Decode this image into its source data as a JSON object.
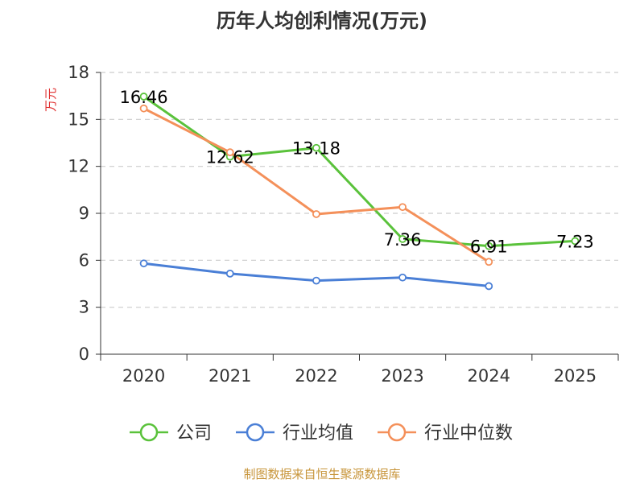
{
  "chart_data": {
    "type": "line",
    "title": "历年人均创利情况(万元)",
    "ylabel": "万元",
    "categories": [
      "2020",
      "2021",
      "2022",
      "2023",
      "2024",
      "2025"
    ],
    "ylim": [
      0,
      18
    ],
    "yticks": [
      0,
      3,
      6,
      9,
      12,
      15,
      18
    ],
    "grid": true,
    "legend_position": "bottom",
    "series": [
      {
        "name": "公司",
        "color": "#5ac23b",
        "values": [
          16.46,
          12.62,
          13.18,
          7.36,
          6.91,
          7.23
        ],
        "labels": [
          "16.46",
          "12.62",
          "13.18",
          "7.36",
          "6.91",
          "7.23"
        ]
      },
      {
        "name": "行业均值",
        "color": "#4a7fd6",
        "values": [
          5.8,
          5.15,
          4.7,
          4.9,
          4.35,
          null
        ]
      },
      {
        "name": "行业中位数",
        "color": "#f4905a",
        "values": [
          15.7,
          12.9,
          8.95,
          9.4,
          5.9,
          null
        ]
      }
    ]
  },
  "source": "制图数据来自恒生聚源数据库",
  "colors": {
    "axis": "#333333",
    "grid": "#cccccc",
    "ylabel": "#e03030"
  }
}
